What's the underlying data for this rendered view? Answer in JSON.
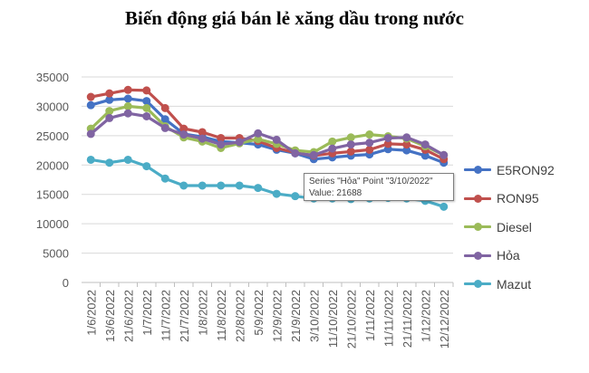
{
  "chart_data": {
    "type": "line",
    "title": "Biến động giá bán lẻ xăng dầu trong nước",
    "xlabel": "",
    "ylabel": "",
    "ylim": [
      0,
      35000
    ],
    "yticks": [
      0,
      5000,
      10000,
      15000,
      20000,
      25000,
      30000,
      35000
    ],
    "grid": "horizontal",
    "legend_position": "right",
    "categories": [
      "1/6/2022",
      "13/6/2022",
      "21/6/2022",
      "1/7/2022",
      "11/7/2022",
      "21/7/2022",
      "1/8/2022",
      "11/8/2022",
      "22/8/2022",
      "5/9/2022",
      "12/9/2022",
      "21/9/2022",
      "3/10/2022",
      "11/10/2022",
      "21/10/2022",
      "1/11/2022",
      "11/11/2022",
      "21/11/2022",
      "1/12/2022",
      "12/12/2022"
    ],
    "series": [
      {
        "name": "E5RON92",
        "color": "#4472C4",
        "values": [
          30200,
          31100,
          31300,
          30900,
          27800,
          25300,
          24800,
          24000,
          23800,
          23500,
          22600,
          22000,
          21000,
          21300,
          21600,
          21800,
          22700,
          22500,
          21600,
          20400
        ]
      },
      {
        "name": "RON95",
        "color": "#C0504D",
        "values": [
          31600,
          32200,
          32800,
          32700,
          29700,
          26200,
          25600,
          24600,
          24600,
          24100,
          22900,
          22100,
          21600,
          22000,
          22300,
          22600,
          23600,
          23500,
          22600,
          21000
        ]
      },
      {
        "name": "Diesel",
        "color": "#9BBB59",
        "values": [
          26200,
          29200,
          30000,
          29700,
          26600,
          24700,
          24000,
          22900,
          23700,
          24400,
          23600,
          22500,
          22200,
          24000,
          24700,
          25200,
          24900,
          24500,
          23200,
          21700
        ]
      },
      {
        "name": "Hỏa",
        "color": "#8064A2",
        "values": [
          25300,
          28000,
          28800,
          28300,
          26300,
          25200,
          24500,
          23500,
          23900,
          25400,
          24300,
          22000,
          21700,
          22800,
          23500,
          23800,
          24600,
          24700,
          23500,
          21700
        ]
      },
      {
        "name": "Mazut",
        "color": "#4BACC6",
        "values": [
          20900,
          20400,
          20900,
          19800,
          17700,
          16500,
          16500,
          16500,
          16500,
          16100,
          15100,
          14700,
          14300,
          14300,
          14200,
          14300,
          14400,
          14300,
          13900,
          12900
        ]
      }
    ],
    "tooltip": {
      "line1": "Series \"Hỏa\" Point \"3/10/2022\"",
      "line2": "Value: 21688"
    }
  }
}
